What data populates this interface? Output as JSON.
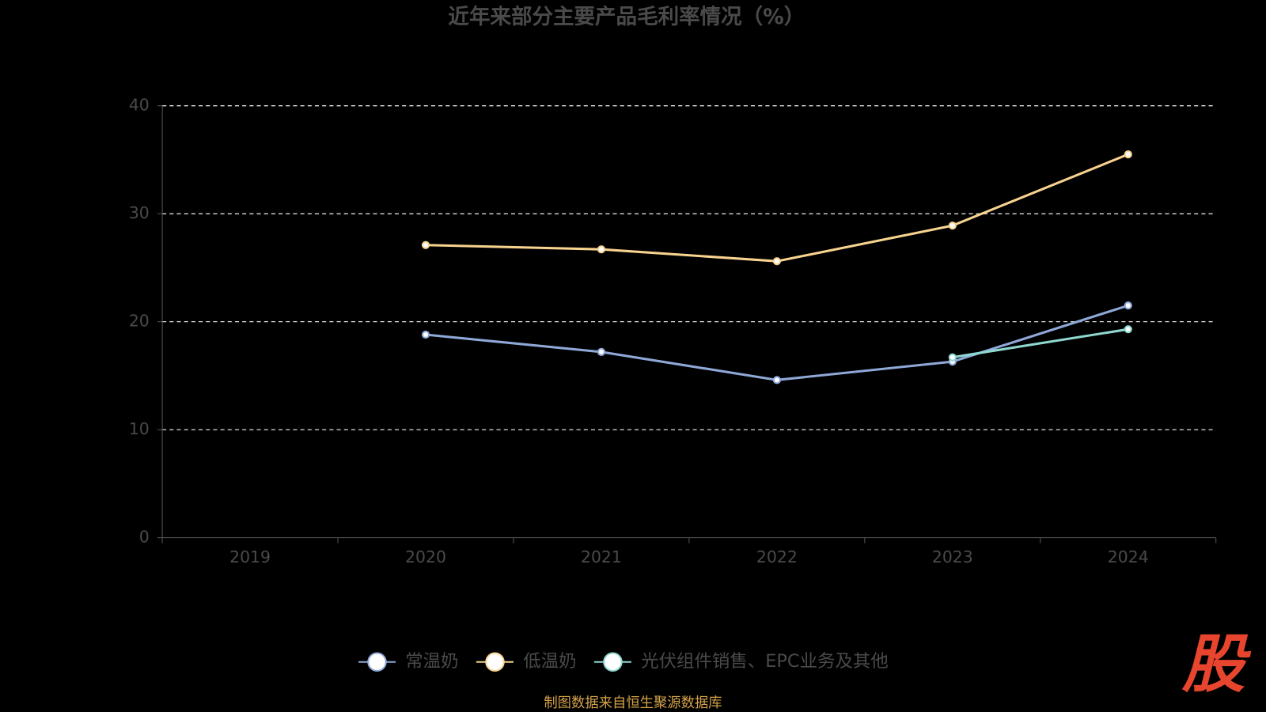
{
  "chart_data": {
    "type": "line",
    "title": "近年来部分主要产品毛利率情况（%）",
    "categories": [
      "2019",
      "2020",
      "2021",
      "2022",
      "2023",
      "2024"
    ],
    "series": [
      {
        "name": "常温奶",
        "color": "#8fa8d8",
        "values": [
          null,
          18.8,
          17.2,
          14.6,
          16.3,
          21.5
        ]
      },
      {
        "name": "低温奶",
        "color": "#f8d38f",
        "values": [
          null,
          27.1,
          26.7,
          25.6,
          28.9,
          35.5
        ]
      },
      {
        "name": "光伏组件销售、EPC业务及其他",
        "color": "#8ed8d0",
        "values": [
          null,
          null,
          null,
          null,
          16.7,
          19.3
        ]
      }
    ],
    "ylim": [
      0,
      40
    ],
    "yticks": [
      0,
      10,
      20,
      30,
      40
    ],
    "grid": true,
    "source": "制图数据来自恒生聚源数据库",
    "logo": "股"
  }
}
